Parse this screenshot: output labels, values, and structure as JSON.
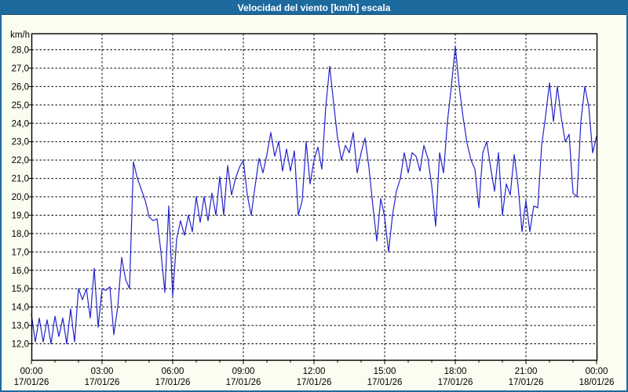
{
  "window": {
    "title": "Velocidad del viento [km/h] escala"
  },
  "colors": {
    "titlebar_bg": "#1c6a9e",
    "frame_border": "#1c6a9e",
    "page_bg": "#fbfdf0",
    "plot_bg": "#ffffff",
    "line": "#2323cc",
    "grid": "#000000",
    "title_text": "#ffffff",
    "axis_text": "#000000"
  },
  "chart_data": {
    "type": "line",
    "title": "Velocidad del viento [km/h] escala",
    "ylabel": "km/h",
    "xlabel": "",
    "grid": true,
    "legend": "none",
    "ylim": [
      11.1,
      28.9
    ],
    "y_ticks": [
      12,
      13,
      14,
      15,
      16,
      17,
      18,
      19,
      20,
      21,
      22,
      23,
      24,
      25,
      26,
      27,
      28
    ],
    "y_tick_labels": [
      "12,0",
      "13,0",
      "14,0",
      "15,0",
      "16,0",
      "17,0",
      "18,0",
      "19,0",
      "20,0",
      "21,0",
      "22,0",
      "23,0",
      "24,0",
      "25,0",
      "26,0",
      "27,0",
      "28,0"
    ],
    "x_ticks": [
      {
        "time": "00:00",
        "date": "17/01/26"
      },
      {
        "time": "03:00",
        "date": "17/01/26"
      },
      {
        "time": "06:00",
        "date": "17/01/26"
      },
      {
        "time": "09:00",
        "date": "17/01/26"
      },
      {
        "time": "12:00",
        "date": "17/01/26"
      },
      {
        "time": "15:00",
        "date": "17/01/26"
      },
      {
        "time": "18:00",
        "date": "17/01/26"
      },
      {
        "time": "21:00",
        "date": "17/01/26"
      },
      {
        "time": "00:00",
        "date": "18/01/26"
      }
    ],
    "x_major_tick_hours": 3,
    "x_minor_tick_hours": 1,
    "x_range_hours": 24,
    "series": [
      {
        "name": "Velocidad del viento [km/h]",
        "start": "17/01/26 00:00",
        "interval_minutes": 10,
        "values": [
          13.6,
          12.1,
          13.4,
          12.1,
          13.3,
          12.0,
          13.5,
          12.4,
          13.4,
          12.0,
          13.9,
          12.1,
          15.0,
          14.4,
          15.0,
          13.4,
          16.1,
          12.9,
          15.0,
          14.9,
          15.1,
          12.5,
          14.0,
          16.7,
          15.5,
          15.0,
          21.9,
          21.0,
          20.4,
          19.8,
          18.9,
          18.7,
          18.8,
          17.0,
          14.8,
          19.5,
          14.6,
          17.7,
          18.7,
          17.9,
          19.0,
          18.1,
          20.0,
          18.6,
          20.0,
          18.7,
          20.2,
          19.0,
          21.1,
          19.0,
          21.7,
          20.1,
          21.0,
          21.6,
          22.0,
          20.1,
          19.0,
          20.6,
          22.1,
          21.3,
          22.3,
          23.5,
          22.2,
          23.0,
          21.4,
          22.6,
          21.4,
          22.5,
          19.0,
          19.8,
          23.0,
          20.7,
          22.0,
          22.7,
          21.5,
          24.9,
          27.1,
          25.1,
          23.2,
          22.0,
          22.8,
          22.4,
          23.5,
          21.3,
          22.4,
          23.2,
          21.6,
          19.5,
          17.6,
          19.9,
          18.9,
          17.0,
          19.0,
          20.3,
          21.0,
          22.4,
          21.3,
          22.4,
          22.2,
          21.4,
          22.8,
          22.1,
          20.6,
          18.4,
          22.4,
          21.3,
          24.1,
          26.0,
          28.2,
          26.0,
          24.3,
          22.9,
          22.0,
          21.5,
          19.4,
          22.4,
          23.0,
          21.6,
          20.3,
          22.4,
          19.0,
          20.7,
          20.1,
          22.3,
          20.6,
          18.1,
          19.8,
          18.1,
          19.5,
          19.4,
          22.8,
          24.4,
          26.2,
          24.1,
          26.0,
          24.3,
          23.0,
          23.4,
          20.2,
          20.0,
          24.1,
          26.0,
          24.9,
          22.4,
          23.3
        ]
      }
    ]
  }
}
